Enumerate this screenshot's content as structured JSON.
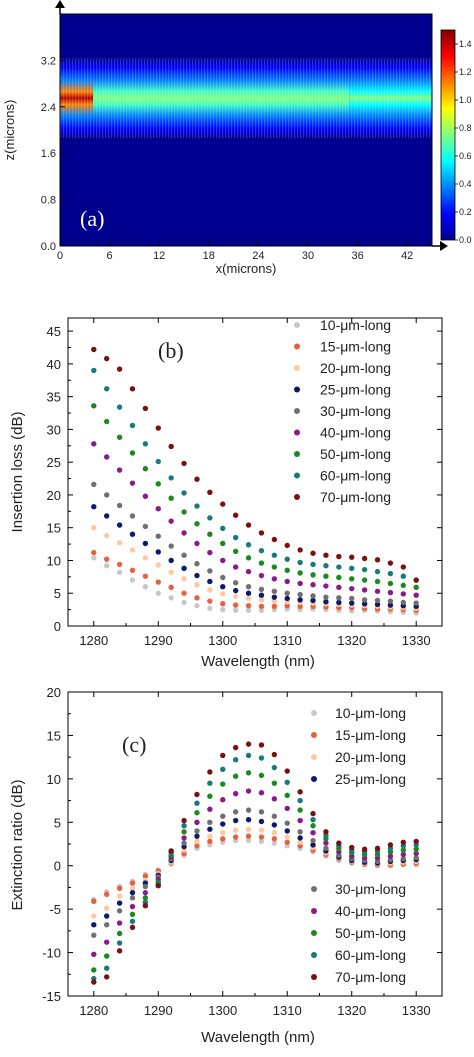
{
  "chart_data": [
    {
      "panel": "(a)",
      "type": "heatmap",
      "xlabel": "x(microns)",
      "ylabel": "z(microns)",
      "xlim": [
        0,
        45
      ],
      "ylim": [
        0,
        4.0
      ],
      "xticks": [
        "0",
        "6",
        "12",
        "18",
        "24",
        "30",
        "36",
        "42"
      ],
      "yticks": [
        "0.0",
        "0.8",
        "1.6",
        "2.4",
        "3.2"
      ],
      "colorbar_ticks": [
        "0.0",
        "0.2",
        "0.4",
        "0.6",
        "0.8",
        "1.0",
        "1.2",
        "1.4"
      ],
      "colorbar_range": [
        0,
        1.5
      ],
      "colormap": [
        "#00008f",
        "#0000ff",
        "#0080ff",
        "#00ffff",
        "#80ff80",
        "#ffff00",
        "#ff8000",
        "#ff0000",
        "#800000"
      ],
      "beam": {
        "center_z": 2.55,
        "half_width_z": 0.55,
        "segments": [
          {
            "x_start": 0,
            "x_end": 4,
            "intensity": 1.35
          },
          {
            "x_start": 4,
            "x_end": 35,
            "intensity": 0.7
          },
          {
            "x_start": 35,
            "x_end": 45,
            "intensity": 0.6
          }
        ]
      }
    },
    {
      "panel": "(b)",
      "type": "scatter",
      "xlabel": "Wavelength (nm)",
      "ylabel": "Insertion loss (dB)",
      "xlim": [
        1276,
        1334
      ],
      "ylim": [
        0,
        47
      ],
      "xticks": [
        1280,
        1290,
        1300,
        1310,
        1320,
        1330
      ],
      "yticks": [
        0,
        5,
        10,
        15,
        20,
        25,
        30,
        35,
        40,
        45
      ],
      "x": [
        1280,
        1282,
        1284,
        1286,
        1288,
        1290,
        1292,
        1294,
        1296,
        1298,
        1300,
        1302,
        1304,
        1306,
        1308,
        1310,
        1312,
        1314,
        1316,
        1318,
        1320,
        1322,
        1324,
        1326,
        1328,
        1330
      ],
      "series": [
        {
          "name": "10-μm-long",
          "color": "#c8c8c8",
          "values": [
            10.4,
            9.2,
            8.2,
            7.0,
            6.0,
            5.0,
            4.3,
            3.6,
            3.1,
            2.7,
            2.5,
            2.4,
            2.4,
            2.4,
            2.5,
            2.6,
            2.5,
            2.6,
            2.5,
            2.4,
            2.3,
            2.4,
            2.3,
            2.2,
            2.1,
            2.0
          ]
        },
        {
          "name": "15-μm-long",
          "color": "#e8603c",
          "values": [
            11.2,
            10.2,
            9.4,
            8.5,
            7.6,
            6.7,
            5.9,
            5.0,
            4.3,
            3.8,
            3.4,
            3.2,
            3.1,
            3.0,
            3.0,
            3.1,
            3.0,
            3.0,
            2.9,
            2.8,
            2.8,
            2.7,
            2.6,
            2.6,
            2.5,
            2.4
          ]
        },
        {
          "name": "20-μm-long",
          "color": "#ffc8a0",
          "values": [
            15.0,
            13.8,
            12.7,
            11.6,
            10.4,
            9.3,
            8.2,
            7.2,
            6.3,
            5.5,
            4.9,
            4.5,
            4.2,
            4.0,
            3.8,
            3.7,
            3.6,
            3.5,
            3.4,
            3.3,
            3.2,
            3.1,
            3.0,
            2.9,
            2.8,
            2.7
          ]
        },
        {
          "name": "25-μm-long",
          "color": "#0a1a6e",
          "values": [
            18.2,
            16.8,
            15.4,
            14.0,
            12.6,
            11.3,
            10.0,
            8.8,
            7.7,
            6.8,
            6.0,
            5.4,
            5.0,
            4.7,
            4.4,
            4.2,
            4.0,
            3.9,
            3.7,
            3.6,
            3.5,
            3.4,
            3.3,
            3.2,
            3.1,
            3.0
          ]
        },
        {
          "name": "30-μm-long",
          "color": "#707070",
          "values": [
            21.6,
            20.0,
            18.4,
            16.8,
            15.2,
            13.7,
            12.2,
            10.8,
            9.5,
            8.4,
            7.4,
            6.6,
            6.0,
            5.6,
            5.3,
            5.0,
            4.8,
            4.6,
            4.4,
            4.3,
            4.2,
            4.0,
            3.9,
            3.8,
            3.6,
            3.5
          ]
        },
        {
          "name": "40-μm-long",
          "color": "#8a1a8c",
          "values": [
            27.8,
            25.8,
            23.8,
            21.8,
            19.8,
            17.9,
            16.0,
            14.2,
            12.6,
            11.2,
            10.0,
            9.0,
            8.3,
            7.7,
            7.2,
            6.8,
            6.5,
            6.3,
            6.1,
            5.9,
            5.7,
            5.5,
            5.3,
            5.1,
            4.9,
            4.7
          ]
        },
        {
          "name": "50-μm-long",
          "color": "#1a8a1a",
          "values": [
            33.6,
            31.2,
            28.8,
            26.4,
            24.0,
            21.7,
            19.5,
            17.4,
            15.6,
            14.0,
            12.6,
            11.4,
            10.4,
            9.6,
            9.0,
            8.5,
            8.1,
            7.8,
            7.6,
            7.4,
            7.2,
            7.0,
            6.8,
            6.5,
            6.2,
            5.9
          ]
        },
        {
          "name": "60-μm-long",
          "color": "#1a7a7a",
          "values": [
            39.0,
            36.2,
            33.4,
            30.6,
            27.8,
            25.1,
            22.6,
            20.3,
            18.3,
            16.5,
            14.9,
            13.5,
            12.4,
            11.5,
            10.8,
            10.2,
            9.7,
            9.4,
            9.2,
            9.0,
            8.8,
            8.6,
            8.3,
            8.0,
            7.6,
            7.0
          ]
        },
        {
          "name": "70-μm-long",
          "color": "#7a1010",
          "values": [
            42.2,
            40.8,
            39.2,
            36.2,
            33.2,
            30.2,
            27.4,
            24.8,
            22.4,
            20.4,
            18.6,
            16.9,
            15.4,
            14.2,
            13.2,
            12.3,
            11.6,
            11.1,
            10.8,
            10.6,
            10.5,
            10.3,
            10.1,
            9.6,
            9.0,
            7.0
          ]
        }
      ],
      "legend_position": "top-right"
    },
    {
      "panel": "(c)",
      "type": "scatter",
      "xlabel": "Wavelength (nm)",
      "ylabel": "Extinction ratio (dB)",
      "xlim": [
        1276,
        1334
      ],
      "ylim": [
        -15,
        20
      ],
      "xticks": [
        1280,
        1290,
        1300,
        1310,
        1320,
        1330
      ],
      "yticks": [
        -15,
        -10,
        -5,
        0,
        5,
        10,
        15,
        20
      ],
      "x": [
        1280,
        1282,
        1284,
        1286,
        1288,
        1290,
        1292,
        1294,
        1296,
        1298,
        1300,
        1302,
        1304,
        1306,
        1308,
        1310,
        1312,
        1314,
        1316,
        1318,
        1320,
        1322,
        1324,
        1326,
        1328,
        1330
      ],
      "series": [
        {
          "name": "10-μm-long",
          "color": "#c8c8c8",
          "values": [
            -3.9,
            -3.0,
            -2.4,
            -1.8,
            -1.0,
            -0.5,
            0.2,
            1.2,
            2.0,
            2.4,
            2.7,
            2.9,
            2.9,
            2.8,
            2.6,
            2.3,
            2.0,
            1.6,
            1.1,
            0.6,
            0.3,
            0.1,
            0.0,
            0.0,
            0.1,
            0.1
          ]
        },
        {
          "name": "15-μm-long",
          "color": "#e8603c",
          "values": [
            -4.1,
            -3.3,
            -2.6,
            -2.0,
            -1.2,
            -0.6,
            0.3,
            1.4,
            2.3,
            2.8,
            3.1,
            3.3,
            3.4,
            3.3,
            3.1,
            2.7,
            2.3,
            1.8,
            1.3,
            0.8,
            0.4,
            0.2,
            0.1,
            0.1,
            0.2,
            0.3
          ]
        },
        {
          "name": "20-μm-long",
          "color": "#ffc8a0",
          "values": [
            -5.8,
            -4.9,
            -3.5,
            -2.6,
            -1.7,
            -0.9,
            0.4,
            1.8,
            2.8,
            3.4,
            3.8,
            4.1,
            4.2,
            4.1,
            3.8,
            3.3,
            2.7,
            2.1,
            1.5,
            0.9,
            0.5,
            0.3,
            0.2,
            0.3,
            0.4,
            0.5
          ]
        },
        {
          "name": "25-μm-long",
          "color": "#0a1a6e",
          "values": [
            -6.8,
            -5.8,
            -4.3,
            -3.1,
            -2.0,
            -1.1,
            0.6,
            2.2,
            3.4,
            4.2,
            4.8,
            5.2,
            5.3,
            5.1,
            4.7,
            4.0,
            3.2,
            2.4,
            1.7,
            1.0,
            0.6,
            0.4,
            0.3,
            0.5,
            0.6,
            0.7
          ]
        },
        {
          "name": "30-μm-long",
          "color": "#707070",
          "values": [
            -8.0,
            -6.8,
            -5.2,
            -3.7,
            -2.4,
            -1.3,
            0.8,
            2.6,
            4.0,
            5.0,
            5.7,
            6.2,
            6.4,
            6.2,
            5.7,
            4.9,
            3.9,
            2.9,
            2.0,
            1.2,
            0.8,
            0.6,
            0.5,
            0.7,
            0.8,
            0.9
          ]
        },
        {
          "name": "40-μm-long",
          "color": "#8a1a8c",
          "values": [
            -10.2,
            -8.8,
            -6.6,
            -4.7,
            -3.1,
            -1.6,
            1.0,
            3.2,
            5.0,
            6.5,
            7.6,
            8.3,
            8.6,
            8.4,
            7.7,
            6.6,
            5.2,
            3.8,
            2.6,
            1.6,
            1.1,
            0.9,
            0.9,
            1.1,
            1.3,
            1.4
          ]
        },
        {
          "name": "50-μm-long",
          "color": "#1a8a1a",
          "values": [
            -12.0,
            -10.4,
            -7.8,
            -5.6,
            -3.7,
            -1.9,
            1.2,
            3.9,
            6.1,
            8.0,
            9.4,
            10.3,
            10.7,
            10.4,
            9.5,
            8.1,
            6.4,
            4.6,
            3.1,
            2.0,
            1.5,
            1.3,
            1.3,
            1.6,
            1.8,
            1.9
          ]
        },
        {
          "name": "60-μm-long",
          "color": "#1a7a7a",
          "values": [
            -13.0,
            -11.8,
            -8.9,
            -6.4,
            -4.2,
            -2.1,
            1.5,
            4.6,
            7.2,
            9.5,
            11.1,
            12.2,
            12.7,
            12.4,
            11.3,
            9.6,
            7.5,
            5.3,
            3.5,
            2.3,
            1.8,
            1.6,
            1.7,
            2.0,
            2.3,
            2.4
          ]
        },
        {
          "name": "70-μm-long",
          "color": "#7a1010",
          "values": [
            -13.4,
            -12.8,
            -9.8,
            -7.1,
            -4.6,
            -2.3,
            1.7,
            5.2,
            8.2,
            10.8,
            12.7,
            13.6,
            14.0,
            13.9,
            12.8,
            10.9,
            8.5,
            6.0,
            3.9,
            2.6,
            2.1,
            1.9,
            2.0,
            2.4,
            2.7,
            2.8
          ]
        }
      ],
      "legend_groups": [
        [
          0,
          1,
          2,
          3
        ],
        [
          4,
          5,
          6,
          7,
          8
        ]
      ]
    }
  ]
}
